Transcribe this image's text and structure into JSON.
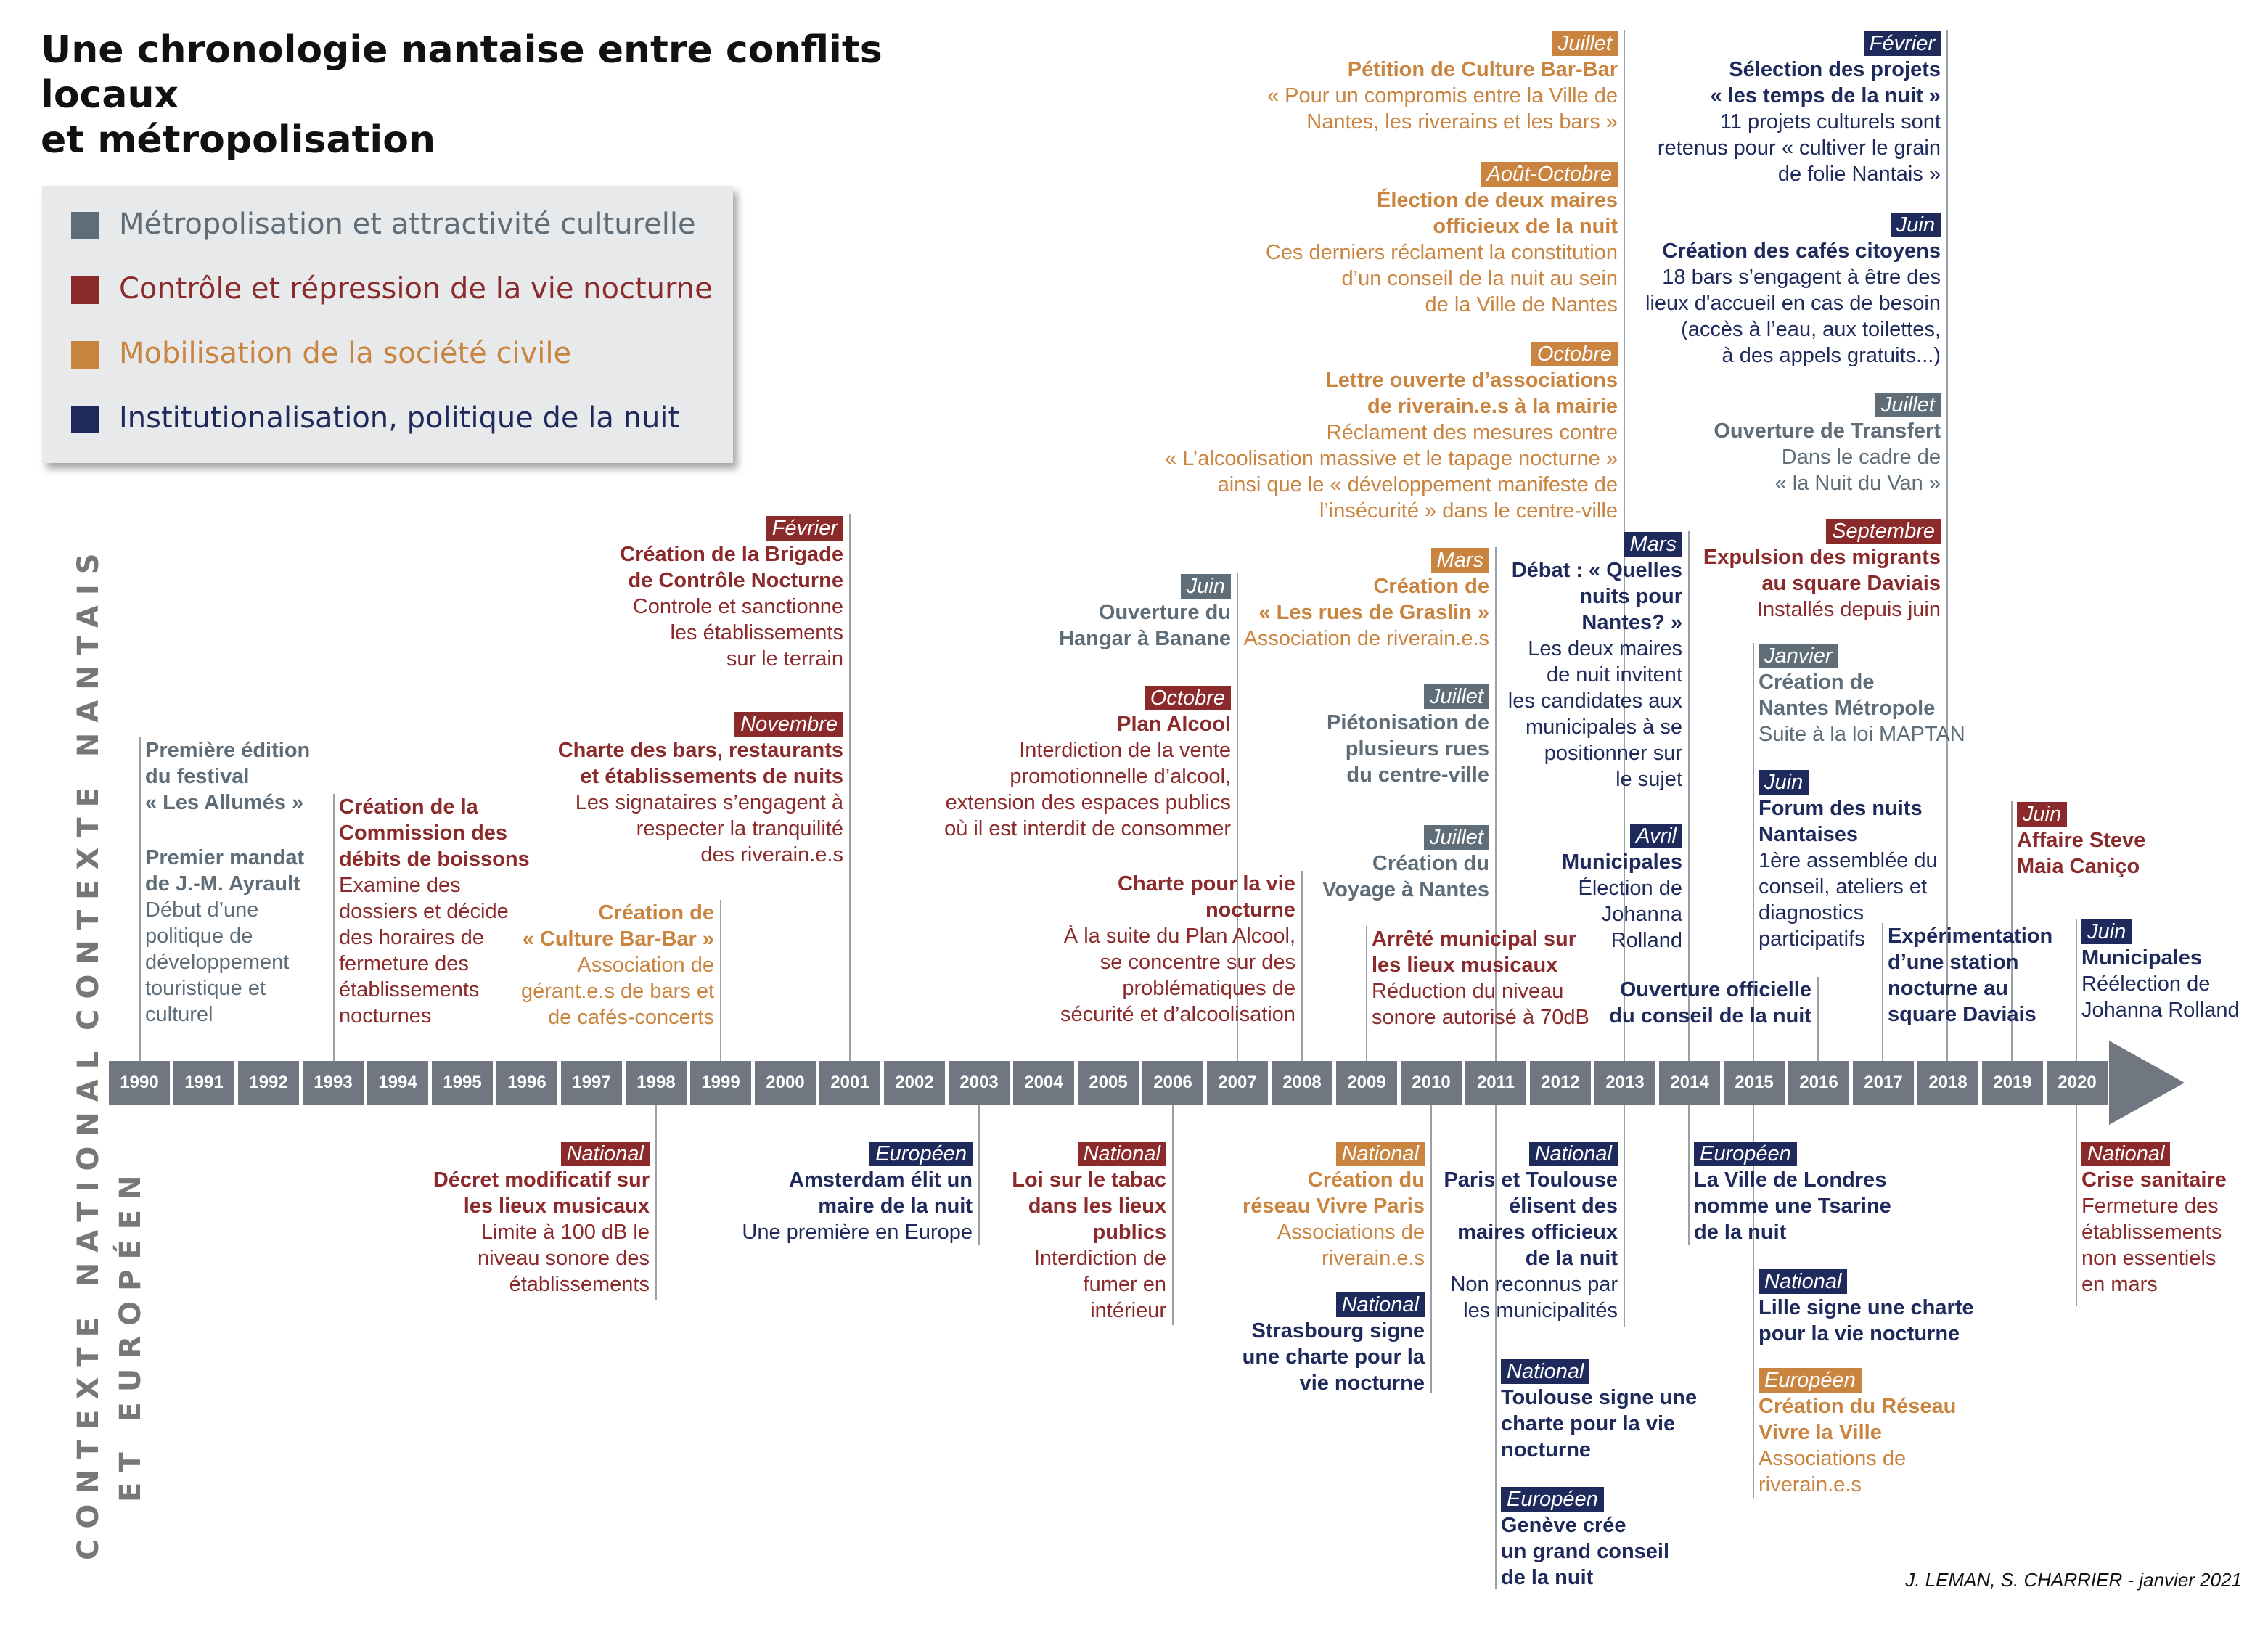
{
  "title": "Une chronologie nantaise entre conflits locaux\net métropolisation",
  "colors": {
    "grey": "#5e6d78",
    "red": "#8a2a2a",
    "orange": "#c9843f",
    "navy": "#1f2a5c",
    "axis": "#707780"
  },
  "legend": [
    {
      "label": "Métropolisation et attractivité culturelle",
      "color": "grey"
    },
    {
      "label": "Contrôle et répression de la vie nocturne",
      "color": "red"
    },
    {
      "label": "Mobilisation de la société civile",
      "color": "orange"
    },
    {
      "label": "Institutionalisation, politique de la nuit",
      "color": "navy"
    }
  ],
  "side_labels": {
    "top": "CONTEXTE NANTAIS",
    "bottom_1": "CONTEXTE NATIONAL",
    "bottom_2": "ET EUROPÉEN"
  },
  "years": [
    "1990",
    "1991",
    "1992",
    "1993",
    "1994",
    "1995",
    "1996",
    "1997",
    "1998",
    "1999",
    "2000",
    "2001",
    "2002",
    "2003",
    "2004",
    "2005",
    "2006",
    "2007",
    "2008",
    "2009",
    "2010",
    "2011",
    "2012",
    "2013",
    "2014",
    "2015",
    "2016",
    "2017",
    "2018",
    "2019",
    "2020"
  ],
  "credit": "J. LEMAN, S. CHARRIER - janvier 2021",
  "events": [
    {
      "id": "ev-1990",
      "year": "1990",
      "tag": "",
      "title": "Première édition\ndu festival\n« Les Allumés »",
      "desc": "",
      "color": "grey"
    },
    {
      "id": "ev-1990b",
      "year": "1990",
      "tag": "",
      "title": "Premier mandat\nde J.-M. Ayrault",
      "desc": "Début d’une\npolitique de\ndéveloppement\ntouristique et\nculturel",
      "color": "grey"
    },
    {
      "id": "ev-1993",
      "year": "1993",
      "tag": "",
      "title": "Création de la\nCommission des\ndébits de boissons",
      "desc": "Examine des\ndossiers et décide\ndes horaires de\nfermeture des\nétablissements\nnocturnes",
      "color": "red"
    },
    {
      "id": "ev-2001a",
      "year": "2001",
      "tag": "Février",
      "title": "Création de la Brigade\nde Contrôle Nocturne",
      "desc": "Controle et sanctionne\nles établissements\nsur le terrain",
      "color": "red"
    },
    {
      "id": "ev-2001b",
      "year": "2001",
      "tag": "Novembre",
      "title": "Charte des bars, restaurants\net établissements de nuits",
      "desc": "Les signataires s’engagent à\nrespecter la tranquilité\ndes riverain.e.s",
      "color": "red"
    },
    {
      "id": "ev-1999",
      "year": "1999",
      "tag": "",
      "title": "Création de\n« Culture Bar-Bar »",
      "desc": "Association de\ngérant.e.s de bars et\nde cafés-concerts",
      "color": "orange"
    },
    {
      "id": "ev-2006a",
      "year": "2006",
      "tag": "Juin",
      "title": "Ouverture du\nHangar à Banane",
      "desc": "",
      "color": "grey"
    },
    {
      "id": "ev-2006b",
      "year": "2006",
      "tag": "Octobre",
      "title": "Plan Alcool",
      "desc": "Interdiction de la vente\npromotionnelle d’alcool,\nextension des espaces publics\noù il est interdit de consommer",
      "color": "red"
    },
    {
      "id": "ev-2007",
      "year": "2007",
      "tag": "",
      "title": "Charte pour la vie\nnocturne",
      "desc": "À la suite du Plan Alcool,\nse concentre sur des\nproblématiques de\nsécurité et d’alcoolisation",
      "color": "red"
    },
    {
      "id": "ev-2010a",
      "year": "2010",
      "tag": "Mars",
      "title": "Création de\n« Les rues de Graslin »",
      "desc": "Association de riverain.e.s",
      "color": "orange"
    },
    {
      "id": "ev-2010b",
      "year": "2010",
      "tag": "Juillet",
      "title": "Piétonisation de\nplusieurs rues\ndu centre-ville",
      "desc": "",
      "color": "grey"
    },
    {
      "id": "ev-2010c",
      "year": "2010",
      "tag": "Juillet",
      "title": "Création du\nVoyage à Nantes",
      "desc": "",
      "color": "grey"
    },
    {
      "id": "ev-2009",
      "year": "2009",
      "tag": "",
      "title": "Arrêté municipal sur\nles lieux musicaux",
      "desc": "Réduction du niveau\nsonore autorisé à 70dB",
      "color": "red"
    },
    {
      "id": "ev-2012a",
      "year": "2012",
      "tag": "Juillet",
      "title": "Pétition de Culture Bar-Bar",
      "desc": "« Pour un compromis entre la Ville de\nNantes, les riverains et les bars »",
      "color": "orange"
    },
    {
      "id": "ev-2012b",
      "year": "2012",
      "tag": "Août-Octobre",
      "title": "Élection de deux maires\nofficieux de la nuit",
      "desc": "Ces derniers réclament la constitution\nd’un conseil de la nuit au sein\nde la Ville de Nantes",
      "color": "orange"
    },
    {
      "id": "ev-2012c",
      "year": "2012",
      "tag": "Octobre",
      "title": "Lettre ouverte d’associations\nde riverain.e.s à la mairie",
      "desc": "Réclament des mesures contre\n« L’alcoolisation massive et le tapage nocturne »\nainsi que le « développement manifeste de\nl’insécurité » dans le centre-ville",
      "color": "orange"
    },
    {
      "id": "ev-2014a",
      "year": "2014",
      "tag": "Mars",
      "title": "Débat : « Quelles\nnuits pour\nNantes? »",
      "desc": "Les deux maires\nde nuit invitent\nles candidates aux\nmunicipales à se\npositionner sur\nle sujet",
      "color": "navy"
    },
    {
      "id": "ev-2014b",
      "year": "2014",
      "tag": "Avril",
      "title": "Municipales",
      "desc": "Élection de\nJohanna\nRolland",
      "color": "navy"
    },
    {
      "id": "ev-2016",
      "year": "2016",
      "tag": "",
      "title": "Ouverture officielle\ndu conseil de la nuit",
      "desc": "",
      "color": "navy"
    },
    {
      "id": "ev-2017a",
      "year": "2017",
      "tag": "Février",
      "title": "Sélection des projets\n« les temps de la nuit »",
      "desc": "11  projets culturels sont\nretenus pour « cultiver le grain\nde folie Nantais »",
      "color": "navy"
    },
    {
      "id": "ev-2017b",
      "year": "2017",
      "tag": "Juin",
      "title": "Création des cafés citoyens",
      "desc": "18 bars s’engagent à être des\nlieux d'accueil en cas de besoin\n(accès à l’eau, aux toilettes,\nà des appels gratuits...)",
      "color": "navy"
    },
    {
      "id": "ev-2017c",
      "year": "2017",
      "tag": "Juillet",
      "title": "Ouverture de Transfert",
      "desc": "Dans le cadre de\n« la Nuit du Van »",
      "color": "grey"
    },
    {
      "id": "ev-2017d",
      "year": "2017",
      "tag": "Septembre",
      "title": "Expulsion des migrants\nau square Daviais",
      "desc": "Installés depuis juin",
      "color": "red"
    },
    {
      "id": "ev-2015a",
      "year": "2015",
      "tag": "Janvier",
      "title": "Création de\nNantes Métropole",
      "desc": "Suite à la loi MAPTAN",
      "color": "grey"
    },
    {
      "id": "ev-2015b",
      "year": "2015",
      "tag": "Juin",
      "title": "Forum des nuits\nNantaises",
      "desc": "1ère assemblée du\nconseil, ateliers et\ndiagnostics\nparticipatifs",
      "color": "navy"
    },
    {
      "id": "ev-2018",
      "year": "2018",
      "tag": "",
      "title": "Expérimentation\nd’une station\nnocturne au\nsquare Daviais",
      "desc": "",
      "color": "navy"
    },
    {
      "id": "ev-2019",
      "year": "2019",
      "tag": "Juin",
      "title": "Affaire Steve\nMaia Caniço",
      "desc": "",
      "color": "red"
    },
    {
      "id": "ev-2020",
      "year": "2020",
      "tag": "Juin",
      "title": "Municipales",
      "desc": "Réélection de\nJohanna Rolland",
      "color": "navy"
    },
    {
      "id": "nat-1998",
      "year": "1998",
      "tag": "National",
      "title": "Décret modificatif sur\nles lieux musicaux",
      "desc": "Limite à 100 dB le\nniveau sonore des\nétablissements",
      "color": "red"
    },
    {
      "id": "nat-2003",
      "year": "2003",
      "tag": "Européen",
      "title": "Amsterdam élit un\nmaire de la nuit",
      "desc": "Une première en Europe",
      "color": "navy"
    },
    {
      "id": "nat-2006",
      "year": "2006",
      "tag": "National",
      "title": "Loi sur le tabac\ndans les lieux\npublics",
      "desc": "Interdiction de\nfumer en\nintérieur",
      "color": "red"
    },
    {
      "id": "nat-2010a",
      "year": "2010",
      "tag": "National",
      "title": "Création du\nréseau Vivre Paris",
      "desc": "Associations de\nriverain.e.s",
      "color": "orange"
    },
    {
      "id": "nat-2010b",
      "year": "2010",
      "tag": "National",
      "title": "Strasbourg signe\nune charte pour la\nvie nocturne",
      "desc": "",
      "color": "navy"
    },
    {
      "id": "nat-2013",
      "year": "2013",
      "tag": "National",
      "title": "Paris et Toulouse\nélisent des\nmaires officieux\nde la nuit",
      "desc": "Non reconnus par\nles municipalités",
      "color": "navy"
    },
    {
      "id": "nat-2011a",
      "year": "2011",
      "tag": "National",
      "title": "Toulouse signe une\ncharte pour la vie\nnocturne",
      "desc": "",
      "color": "navy"
    },
    {
      "id": "nat-2011b",
      "year": "2011",
      "tag": "Européen",
      "title": "Genève crée\nun grand conseil\nde la nuit",
      "desc": "",
      "color": "navy"
    },
    {
      "id": "nat-2014",
      "year": "2014",
      "tag": "Européen",
      "title": "La Ville de Londres\nnomme une Tsarine\nde la nuit",
      "desc": "",
      "color": "navy"
    },
    {
      "id": "nat-2015a",
      "year": "2015",
      "tag": "National",
      "title": "Lille signe une charte\npour la vie nocturne",
      "desc": "",
      "color": "navy"
    },
    {
      "id": "nat-2015b",
      "year": "2015",
      "tag": "Européen",
      "title": "Création du Réseau\nVivre la Ville",
      "desc": "Associations de\nriverain.e.s",
      "color": "orange"
    },
    {
      "id": "nat-2020",
      "year": "2020",
      "tag": "National",
      "title": "Crise sanitaire",
      "desc": "Fermeture des\nétablissements\nnon essentiels\nen mars",
      "color": "red"
    }
  ]
}
